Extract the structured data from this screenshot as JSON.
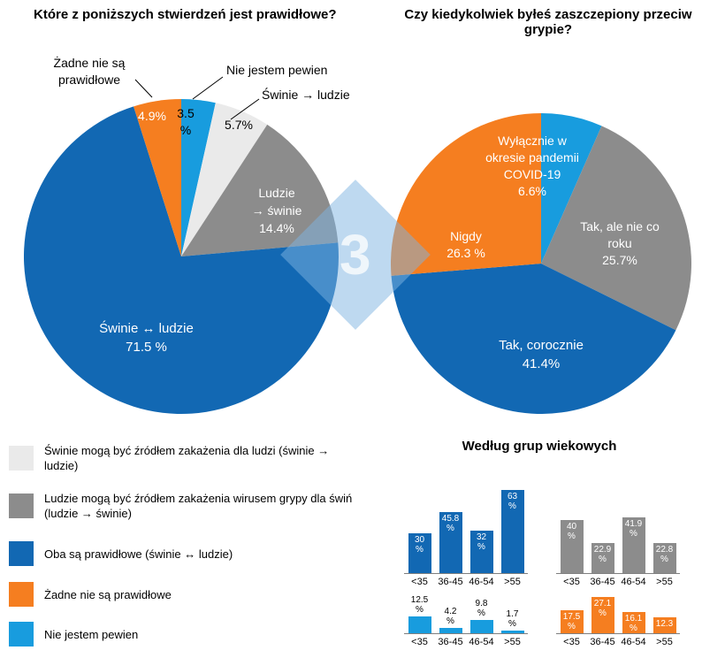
{
  "colors": {
    "blue": "#1268B3",
    "light_blue": "#189CDE",
    "orange": "#F57E20",
    "gray": "#8C8C8C",
    "light_gray": "#EAEAEA"
  },
  "watermark": {
    "glyph": "3"
  },
  "chart_data": [
    {
      "type": "pie",
      "title": "Które z poniższych stwierdzeń jest prawidłowe?",
      "direction": "clockwise",
      "start_angle_deg_from_top": 0,
      "slices": [
        {
          "label": "Nie jestem pewien",
          "value": 3.5,
          "display": "3.5 %",
          "color": "light_blue"
        },
        {
          "label": "Świnie → ludzie",
          "value": 5.7,
          "display": "5.7%",
          "color": "light_gray"
        },
        {
          "label": "Ludzie → świnie",
          "value": 14.4,
          "display": "14.4%",
          "color": "gray"
        },
        {
          "label": "Świnie ↔ ludzie",
          "value": 71.5,
          "display": "71.5 %",
          "color": "blue"
        },
        {
          "label": "Żadne nie są prawidłowe",
          "value": 4.9,
          "display": "4.9%",
          "color": "orange"
        }
      ]
    },
    {
      "type": "pie",
      "title": "Czy kiedykolwiek byłeś zaszczepiony przeciw grypie?",
      "direction": "clockwise",
      "start_angle_deg_from_top": 0,
      "slices": [
        {
          "label": "Wyłącznie w okresie pandemii COVID-19",
          "value": 6.6,
          "display": "6.6%",
          "color": "light_blue"
        },
        {
          "label": "Tak, ale nie co roku",
          "value": 25.7,
          "display": "25.7%",
          "color": "gray"
        },
        {
          "label": "Tak, corocznie",
          "value": 41.4,
          "display": "41.4%",
          "color": "blue"
        },
        {
          "label": "Nigdy",
          "value": 26.3,
          "display": "26.3 %",
          "color": "orange"
        }
      ]
    },
    {
      "type": "bar",
      "title": "Według grup wiekowych",
      "categories": [
        "<35",
        "36-45",
        "46-54",
        ">55"
      ],
      "ylim": [
        0,
        100
      ],
      "series": [
        {
          "color": "blue",
          "values": [
            30,
            45.8,
            32,
            63
          ],
          "display": [
            "30 %",
            "45.8 %",
            "32 %",
            "63 %"
          ],
          "labels_inside": true
        },
        {
          "color": "gray",
          "values": [
            40,
            22.9,
            41.9,
            22.8
          ],
          "display": [
            "40 %",
            "22.9 %",
            "41.9 %",
            "22.8 %"
          ],
          "labels_inside": true
        },
        {
          "color": "light_blue",
          "values": [
            12.5,
            4.2,
            9.8,
            1.7
          ],
          "display": [
            "12.5 %",
            "4.2 %",
            "9.8 %",
            "1.7 %"
          ],
          "labels_inside": false
        },
        {
          "color": "orange",
          "values": [
            17.5,
            27.1,
            16.1,
            12.3
          ],
          "display": [
            "17.5 %",
            "27.1 %",
            "16.1 %",
            "12.3"
          ],
          "labels_inside": true
        }
      ]
    }
  ],
  "pie_labels": {
    "left": {
      "zadne_name": "Żadne nie są\nprawidłowe",
      "zadne_pct": "4.9%",
      "pewien_pct": "3.5\n%",
      "pewien_name": "Nie jestem pewien",
      "swinie_do_ludzi_name": "Świnie → ludzie",
      "swinie_do_ludzi_pct": "5.7%",
      "ludzie_do_swin": "Ludzie\n→ świnie\n14.4%",
      "oba": "Świnie ↔ ludzie\n71.5 %"
    },
    "right": {
      "covid": "Wyłącznie w\nokresie pandemii\nCOVID-19\n6.6%",
      "nie_co_roku": "Tak, ale nie co\nroku\n25.7%",
      "nigdy": "Nigdy\n26.3 %",
      "corocznie": "Tak, corocznie\n41.4%"
    }
  },
  "legend": {
    "items": [
      {
        "color": "light_gray",
        "label": "Świnie mogą być źródłem zakażenia dla ludzi (świnie →\nludzie)"
      },
      {
        "color": "gray",
        "label": "Ludzie mogą być źródłem zakażenia wirusem grypy dla świń\n(ludzie → świnie)"
      },
      {
        "color": "blue",
        "label": "Oba są prawidłowe (świnie ↔ ludzie)"
      },
      {
        "color": "orange",
        "label": "Żadne nie są prawidłowe"
      },
      {
        "color": "light_blue",
        "label": "Nie jestem pewien"
      }
    ]
  }
}
